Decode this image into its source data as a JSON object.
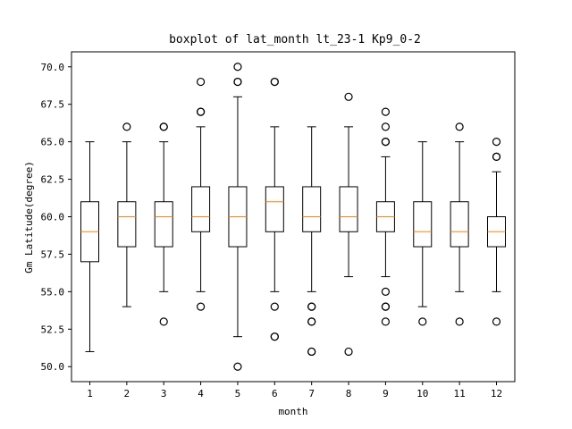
{
  "chart_data": {
    "type": "boxplot",
    "title": "boxplot of lat_month lt_23-1 Kp9_0-2",
    "xlabel": "month",
    "ylabel": "Gm Latitude(degree)",
    "ylim": [
      49.0,
      71.0
    ],
    "yticks": [
      "50.0",
      "52.5",
      "55.0",
      "57.5",
      "60.0",
      "62.5",
      "65.0",
      "67.5",
      "70.0"
    ],
    "categories": [
      "1",
      "2",
      "3",
      "4",
      "5",
      "6",
      "7",
      "8",
      "9",
      "10",
      "11",
      "12"
    ],
    "boxes": [
      {
        "label": "1",
        "whisker_low": 51,
        "q1": 57,
        "median": 59,
        "q3": 61,
        "whisker_high": 65,
        "outliers": []
      },
      {
        "label": "2",
        "whisker_low": 54,
        "q1": 58,
        "median": 60,
        "q3": 61,
        "whisker_high": 65,
        "outliers": [
          66
        ]
      },
      {
        "label": "3",
        "whisker_low": 55,
        "q1": 58,
        "median": 60,
        "q3": 61,
        "whisker_high": 65,
        "outliers": [
          53,
          66,
          66
        ]
      },
      {
        "label": "4",
        "whisker_low": 55,
        "q1": 59,
        "median": 60,
        "q3": 62,
        "whisker_high": 66,
        "outliers": [
          54,
          67,
          67,
          69
        ]
      },
      {
        "label": "5",
        "whisker_low": 52,
        "q1": 58,
        "median": 60,
        "q3": 62,
        "whisker_high": 68,
        "outliers": [
          50,
          69,
          69,
          70
        ]
      },
      {
        "label": "6",
        "whisker_low": 55,
        "q1": 59,
        "median": 61,
        "q3": 62,
        "whisker_high": 66,
        "outliers": [
          52,
          52,
          54,
          69,
          69
        ]
      },
      {
        "label": "7",
        "whisker_low": 55,
        "q1": 59,
        "median": 60,
        "q3": 62,
        "whisker_high": 66,
        "outliers": [
          51,
          51,
          53,
          53,
          54,
          54
        ]
      },
      {
        "label": "8",
        "whisker_low": 56,
        "q1": 59,
        "median": 60,
        "q3": 62,
        "whisker_high": 66,
        "outliers": [
          51,
          68
        ]
      },
      {
        "label": "9",
        "whisker_low": 56,
        "q1": 59,
        "median": 60,
        "q3": 61,
        "whisker_high": 64,
        "outliers": [
          53,
          54,
          54,
          55,
          65,
          65,
          66,
          67
        ]
      },
      {
        "label": "10",
        "whisker_low": 54,
        "q1": 58,
        "median": 59,
        "q3": 61,
        "whisker_high": 65,
        "outliers": [
          53
        ]
      },
      {
        "label": "11",
        "whisker_low": 55,
        "q1": 58,
        "median": 59,
        "q3": 61,
        "whisker_high": 65,
        "outliers": [
          53,
          66
        ]
      },
      {
        "label": "12",
        "whisker_low": 55,
        "q1": 58,
        "median": 59,
        "q3": 60,
        "whisker_high": 63,
        "outliers": [
          53,
          64,
          64,
          65
        ]
      }
    ],
    "grid": false,
    "colors": {
      "box": "#000000",
      "median": "#ff7f0e",
      "outlier": "#000000"
    }
  }
}
